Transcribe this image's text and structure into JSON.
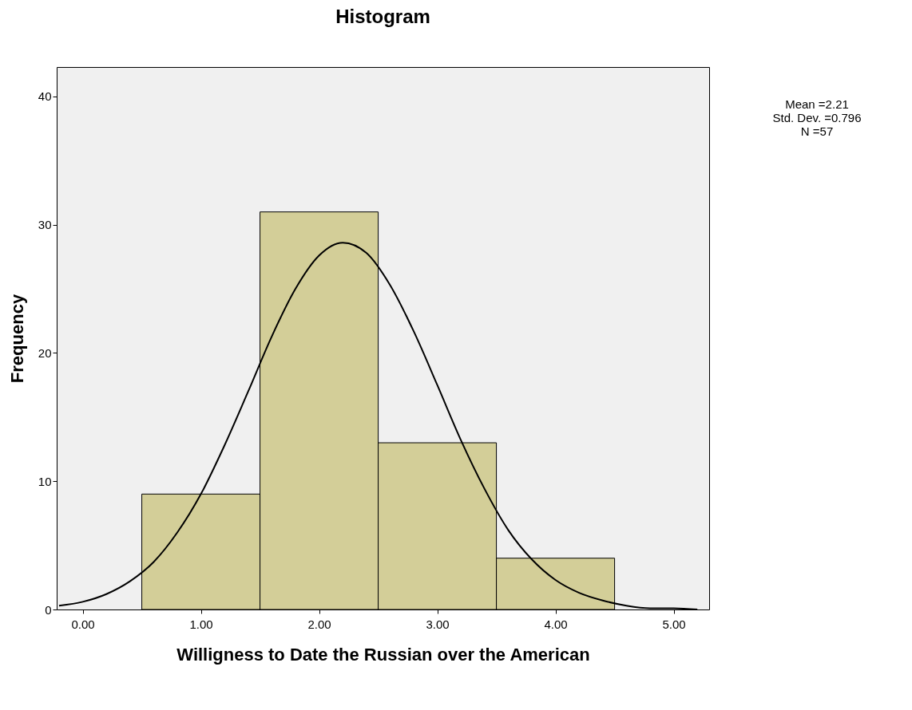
{
  "chart_data": {
    "type": "histogram",
    "title": "Histogram",
    "xlabel": "Willigness to Date the Russian over the American",
    "ylabel": "Frequency",
    "bins": [
      0.5,
      1.5,
      2.5,
      3.5,
      4.5
    ],
    "values": [
      9,
      31,
      13,
      4
    ],
    "color": "#d3ce98",
    "xlim": [
      -0.22,
      5.3
    ],
    "ylim": [
      0,
      42.3
    ],
    "xticks": [
      {
        "value": 0,
        "label": "0.00"
      },
      {
        "value": 1,
        "label": "1.00"
      },
      {
        "value": 2,
        "label": "2.00"
      },
      {
        "value": 3,
        "label": "3.00"
      },
      {
        "value": 4,
        "label": "4.00"
      },
      {
        "value": 5,
        "label": "5.00"
      }
    ],
    "yticks": [
      0,
      10,
      20,
      30,
      40
    ],
    "grid": false,
    "annotations": [
      "Mean =2.21",
      "Std. Dev. =0.796",
      "N =57"
    ],
    "series": [
      {
        "type": "line",
        "color": "#000000",
        "x": [
          -0.2,
          0,
          0.2,
          0.4,
          0.6,
          0.8,
          1,
          1.2,
          1.4,
          1.6,
          1.8,
          2,
          2.2,
          2.4,
          2.6,
          2.8,
          3,
          3.2,
          3.4,
          3.6,
          3.8,
          4,
          4.2,
          4.4,
          4.6,
          4.8,
          5,
          5.2
        ],
        "values": [
          0.3,
          0.6,
          1.2,
          2.2,
          3.7,
          6.0,
          9.0,
          12.8,
          17.0,
          21.3,
          25.0,
          27.6,
          28.6,
          27.8,
          25.3,
          21.7,
          17.5,
          13.2,
          9.4,
          6.2,
          3.9,
          2.3,
          1.3,
          0.7,
          0.3,
          0.1,
          0.1,
          0.0
        ]
      }
    ]
  }
}
